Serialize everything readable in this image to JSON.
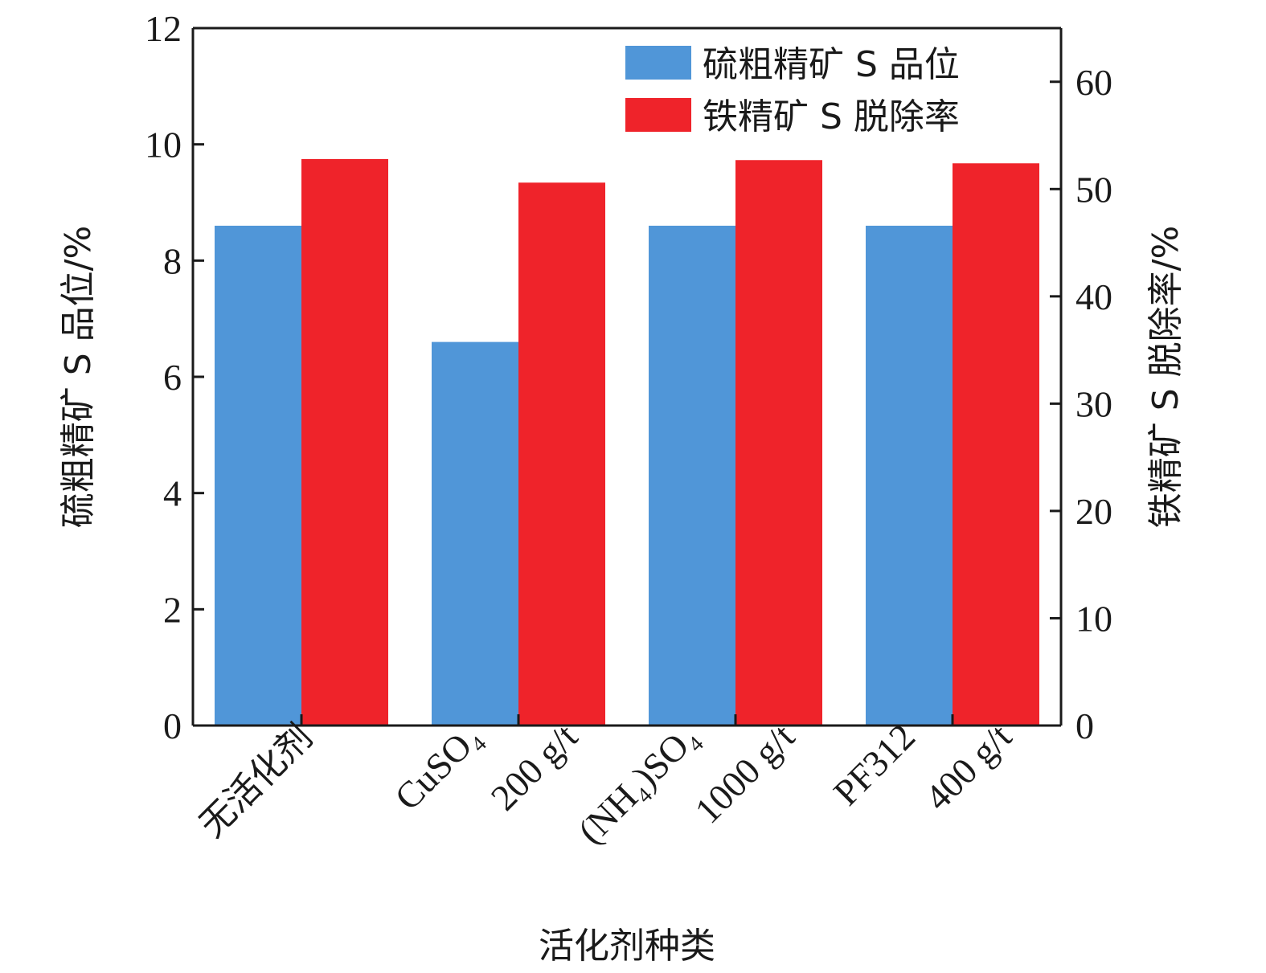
{
  "chart_data": {
    "type": "bar",
    "categories": [
      [
        "无活化剂"
      ],
      [
        "CuSO₄",
        "200 g/t"
      ],
      [
        "(NH₄)SO₄",
        "1000 g/t"
      ],
      [
        "PF312",
        "400 g/t"
      ]
    ],
    "series": [
      {
        "name": "硫粗精矿 S 品位",
        "axis": "left",
        "color": "#5096d8",
        "values": [
          8.6,
          6.6,
          8.6,
          8.6
        ]
      },
      {
        "name": "铁精矿 S 脱除率",
        "axis": "right",
        "color": "#ef232a",
        "values": [
          52.8,
          50.6,
          52.7,
          52.4
        ]
      }
    ],
    "xlabel": "活化剂种类",
    "ylabel_left": "硫粗精矿 S 品位/%",
    "ylabel_right": "铁精矿 S 脱除率/%",
    "ylim_left": [
      0,
      12
    ],
    "yticks_left": [
      0,
      2,
      4,
      6,
      8,
      10,
      12
    ],
    "ylim_right": [
      0,
      65
    ],
    "yticks_right": [
      0,
      10,
      20,
      30,
      40,
      50,
      60
    ],
    "legend_position": "top-right",
    "grid": false
  }
}
